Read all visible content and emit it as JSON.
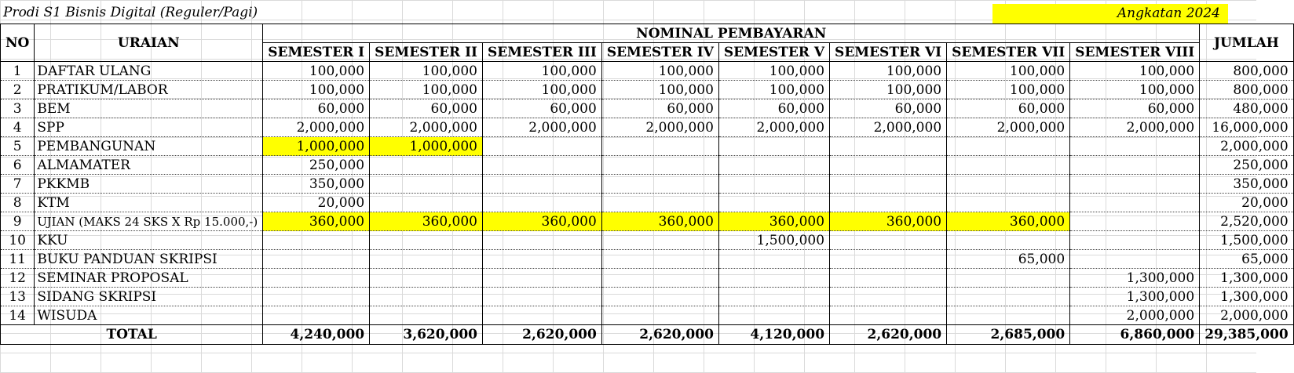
{
  "sheet": {
    "title_left": "Prodi S1 Bisnis Digital (Reguler/Pagi)",
    "title_right": "Angkatan 2024",
    "highlight_color": "#ffff00"
  },
  "headers": {
    "no": "NO",
    "uraian": "URAIAN",
    "group": "NOMINAL PEMBAYARAN",
    "jumlah": "JUMLAH",
    "semesters": [
      "SEMESTER I",
      "SEMESTER II",
      "SEMESTER III",
      "SEMESTER IV",
      "SEMESTER V",
      "SEMESTER VI",
      "SEMESTER VII",
      "SEMESTER VIII"
    ]
  },
  "rows": [
    {
      "no": "1",
      "desc": "DAFTAR ULANG",
      "sem": [
        "100,000",
        "100,000",
        "100,000",
        "100,000",
        "100,000",
        "100,000",
        "100,000",
        "100,000"
      ],
      "jumlah": "800,000"
    },
    {
      "no": "2",
      "desc": "PRATIKUM/LABOR",
      "sem": [
        "100,000",
        "100,000",
        "100,000",
        "100,000",
        "100,000",
        "100,000",
        "100,000",
        "100,000"
      ],
      "jumlah": "800,000"
    },
    {
      "no": "3",
      "desc": "BEM",
      "sem": [
        "60,000",
        "60,000",
        "60,000",
        "60,000",
        "60,000",
        "60,000",
        "60,000",
        "60,000"
      ],
      "jumlah": "480,000"
    },
    {
      "no": "4",
      "desc": "SPP",
      "sem": [
        "2,000,000",
        "2,000,000",
        "2,000,000",
        "2,000,000",
        "2,000,000",
        "2,000,000",
        "2,000,000",
        "2,000,000"
      ],
      "jumlah": "16,000,000"
    },
    {
      "no": "5",
      "desc": "PEMBANGUNAN",
      "sem": [
        "1,000,000",
        "1,000,000",
        "",
        "",
        "",
        "",
        "",
        ""
      ],
      "jumlah": "2,000,000"
    },
    {
      "no": "6",
      "desc": "ALMAMATER",
      "sem": [
        "250,000",
        "",
        "",
        "",
        "",
        "",
        "",
        ""
      ],
      "jumlah": "250,000"
    },
    {
      "no": "7",
      "desc": "PKKMB",
      "sem": [
        "350,000",
        "",
        "",
        "",
        "",
        "",
        "",
        ""
      ],
      "jumlah": "350,000"
    },
    {
      "no": "8",
      "desc": "KTM",
      "sem": [
        "20,000",
        "",
        "",
        "",
        "",
        "",
        "",
        ""
      ],
      "jumlah": "20,000"
    },
    {
      "no": "9",
      "desc": "UJIAN (MAKS 24 SKS X Rp 15.000,-)",
      "sem": [
        "360,000",
        "360,000",
        "360,000",
        "360,000",
        "360,000",
        "360,000",
        "360,000",
        ""
      ],
      "jumlah": "2,520,000"
    },
    {
      "no": "10",
      "desc": "KKU",
      "sem": [
        "",
        "",
        "",
        "",
        "1,500,000",
        "",
        "",
        ""
      ],
      "jumlah": "1,500,000"
    },
    {
      "no": "11",
      "desc": "BUKU PANDUAN SKRIPSI",
      "sem": [
        "",
        "",
        "",
        "",
        "",
        "",
        "65,000",
        ""
      ],
      "jumlah": "65,000"
    },
    {
      "no": "12",
      "desc": "SEMINAR PROPOSAL",
      "sem": [
        "",
        "",
        "",
        "",
        "",
        "",
        "",
        "1,300,000"
      ],
      "jumlah": "1,300,000"
    },
    {
      "no": "13",
      "desc": "SIDANG SKRIPSI",
      "sem": [
        "",
        "",
        "",
        "",
        "",
        "",
        "",
        "1,300,000"
      ],
      "jumlah": "1,300,000"
    },
    {
      "no": "14",
      "desc": "WISUDA",
      "sem": [
        "",
        "",
        "",
        "",
        "",
        "",
        "",
        "2,000,000"
      ],
      "jumlah": "2,000,000"
    }
  ],
  "total": {
    "label": "TOTAL",
    "sem": [
      "4,240,000",
      "3,620,000",
      "2,620,000",
      "2,620,000",
      "4,120,000",
      "2,620,000",
      "2,685,000",
      "6,860,000"
    ],
    "jumlah": "29,385,000"
  }
}
